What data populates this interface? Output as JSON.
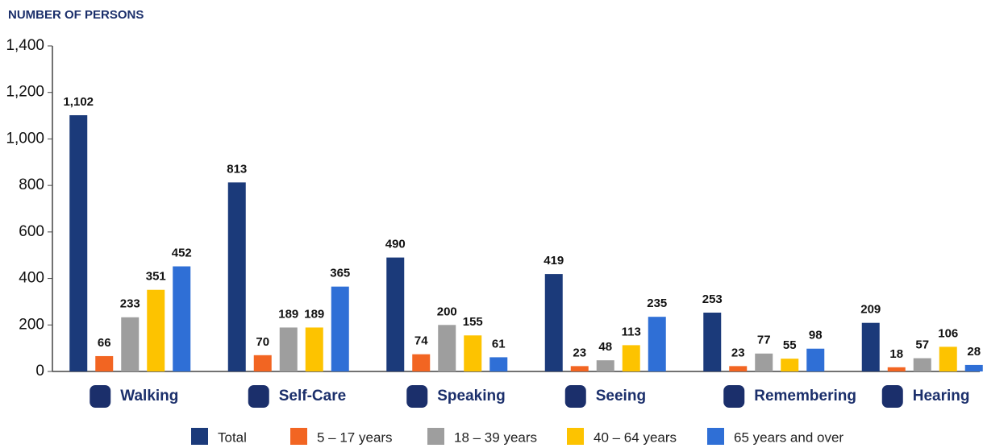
{
  "chart_data": {
    "type": "bar",
    "y_label": "NUMBER OF PERSONS",
    "categories": [
      "Walking",
      "Self-Care",
      "Speaking",
      "Seeing",
      "Remembering",
      "Hearing"
    ],
    "series": [
      {
        "name": "Total",
        "color": "#1b3a7a",
        "values": [
          1102,
          813,
          490,
          419,
          253,
          209
        ],
        "value_labels": [
          "1,102",
          "813",
          "490",
          "419",
          "253",
          "209"
        ]
      },
      {
        "name": "5 – 17 years",
        "color": "#f26522",
        "values": [
          66,
          70,
          74,
          23,
          23,
          18
        ]
      },
      {
        "name": "18 – 39 years",
        "color": "#9e9e9e",
        "values": [
          233,
          189,
          200,
          48,
          77,
          57
        ]
      },
      {
        "name": "40 – 64 years",
        "color": "#fdc300",
        "values": [
          351,
          189,
          155,
          113,
          55,
          106
        ]
      },
      {
        "name": "65 years and over",
        "color": "#2f6fd6",
        "values": [
          452,
          365,
          61,
          235,
          98,
          28
        ]
      }
    ],
    "ylim": [
      0,
      1400
    ],
    "yticks": [
      0,
      200,
      400,
      600,
      800,
      {
        "value": 1000,
        "label": "1,000"
      },
      {
        "value": 1200,
        "label": "1,200"
      },
      {
        "value": 1400,
        "label": "1,400"
      }
    ],
    "grid": false
  }
}
